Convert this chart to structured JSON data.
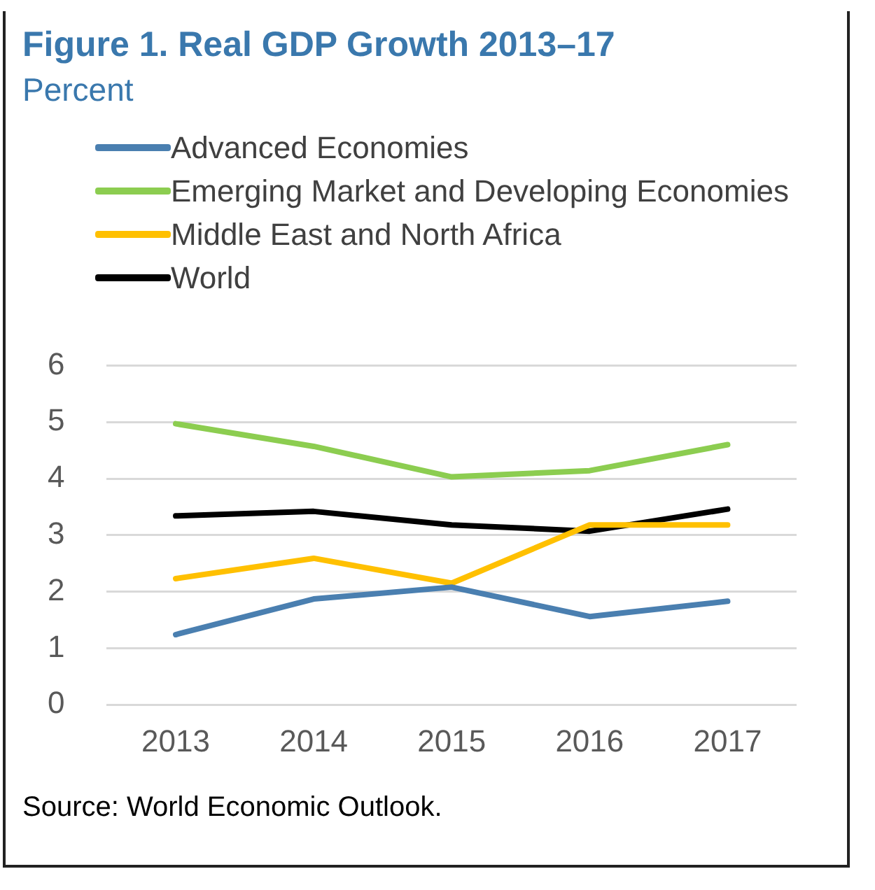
{
  "chart_data": {
    "type": "line",
    "title": "Figure 1. Real GDP Growth 2013–17",
    "subtitle": "Percent",
    "categories": [
      "2013",
      "2014",
      "2015",
      "2016",
      "2017"
    ],
    "series": [
      {
        "name": "Advanced Economies",
        "color": "#4a7fb0",
        "values": [
          1.24,
          1.87,
          2.08,
          1.56,
          1.83
        ]
      },
      {
        "name": "Emerging Market and Developing Economies",
        "color": "#8ccd50",
        "values": [
          4.97,
          4.57,
          4.03,
          4.14,
          4.6
        ]
      },
      {
        "name": "Middle East and North Africa",
        "color": "#ffc000",
        "values": [
          2.23,
          2.59,
          2.15,
          3.18,
          3.18
        ]
      },
      {
        "name": "World",
        "color": "#000000",
        "values": [
          3.34,
          3.42,
          3.18,
          3.07,
          3.46
        ]
      }
    ],
    "ylim": [
      0,
      6
    ],
    "yticks": [
      0,
      1,
      2,
      3,
      4,
      5,
      6
    ],
    "grid": "y",
    "legend": "top left",
    "marker": "none",
    "line_style": "solid",
    "annotations": [
      "Source: World Economic Outlook."
    ]
  }
}
